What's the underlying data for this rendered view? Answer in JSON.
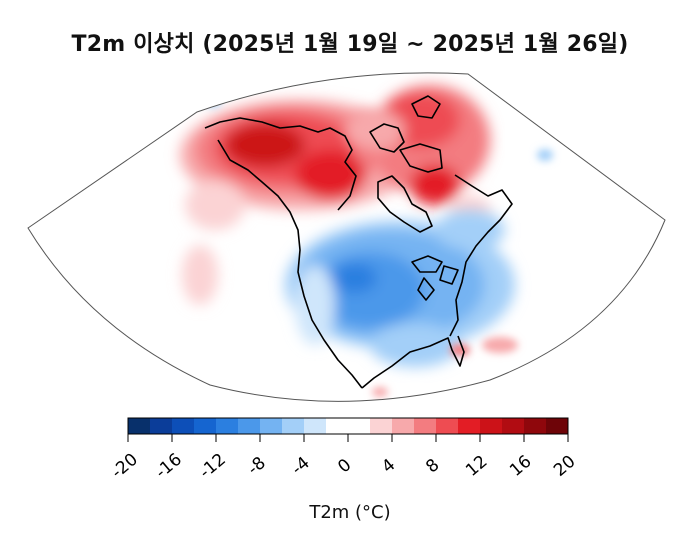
{
  "title": "T2m 이상치 (2025년 1월 19일 ~ 2025년 1월 26일)",
  "colorbar": {
    "label": "T2m (°C)",
    "ticks": [
      "-20",
      "-16",
      "-12",
      "-8",
      "-4",
      "0",
      "4",
      "8",
      "12",
      "16",
      "20"
    ],
    "colors": [
      "#08306b",
      "#0b3d99",
      "#0d4fb8",
      "#1565d0",
      "#2b7fe0",
      "#4b98ea",
      "#74b3f2",
      "#a3cff8",
      "#cfe6fb",
      "#ffffff",
      "#ffffff",
      "#fbd3d4",
      "#f7a9ab",
      "#f37c80",
      "#ee4c52",
      "#e31d25",
      "#cc1218",
      "#b10c12",
      "#8f070c",
      "#6e0408"
    ]
  }
}
